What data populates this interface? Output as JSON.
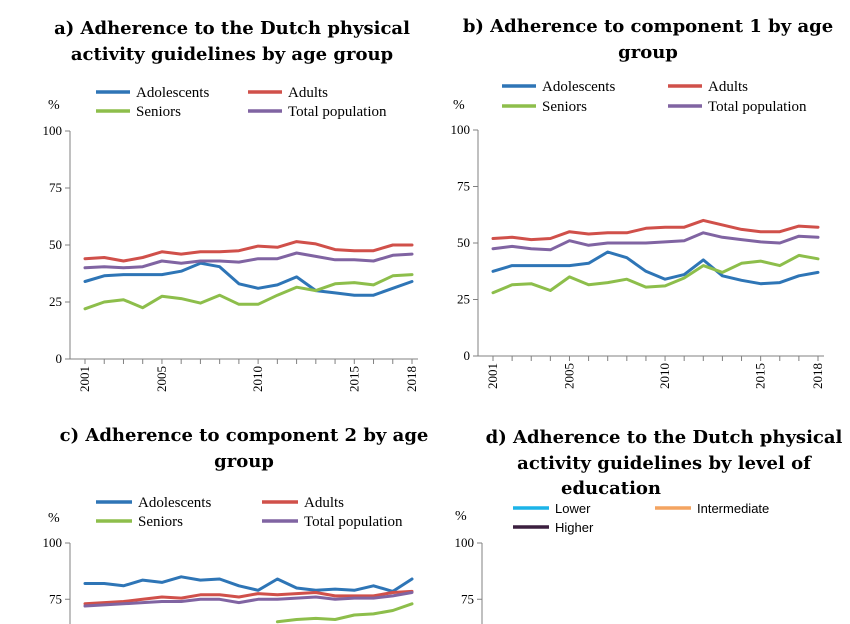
{
  "chart_data": [
    {
      "type": "line",
      "title": "a) Adherence to the Dutch physical activity guidelines by age group",
      "title_lines": [
        "a) Adherence to the Dutch physical",
        "activity guidelines by age group"
      ],
      "ylabel": "%",
      "ylim": [
        0,
        100
      ],
      "yticks": [
        0,
        25,
        50,
        75,
        100
      ],
      "x": [
        2001,
        2002,
        2003,
        2004,
        2005,
        2006,
        2007,
        2008,
        2009,
        2010,
        2011,
        2012,
        2013,
        2014,
        2015,
        2016,
        2017,
        2018
      ],
      "xtick_labels": [
        "2001",
        "2005",
        "2010",
        "2015",
        "2018"
      ],
      "series": [
        {
          "name": "Adolescents",
          "color": "#2E75B6",
          "values": [
            34,
            36.5,
            37,
            37,
            37,
            38.5,
            42,
            40.5,
            33,
            31,
            32.5,
            36,
            30,
            29,
            28,
            28,
            31,
            34
          ]
        },
        {
          "name": "Adults",
          "color": "#D0504A",
          "values": [
            44,
            44.5,
            43,
            44.5,
            47,
            46,
            47,
            47,
            47.5,
            49.5,
            49,
            51.5,
            50.5,
            48,
            47.5,
            47.5,
            50,
            50
          ]
        },
        {
          "name": "Seniors",
          "color": "#8DBE4B",
          "values": [
            22,
            25,
            26,
            22.5,
            27.5,
            26.5,
            24.5,
            28,
            24,
            24,
            28,
            31.5,
            30,
            33,
            33.5,
            32.5,
            36.5,
            37
          ]
        },
        {
          "name": "Total population",
          "color": "#8064A2",
          "values": [
            40,
            40.5,
            40,
            40.5,
            43,
            42,
            43,
            43,
            42.5,
            44,
            44,
            46.5,
            45,
            43.5,
            43.5,
            43,
            45.5,
            46
          ]
        }
      ]
    },
    {
      "type": "line",
      "title": "b) Adherence to component 1 by age group",
      "title_lines": [
        "b) Adherence to component 1 by age",
        "group"
      ],
      "ylabel": "%",
      "ylim": [
        0,
        100
      ],
      "yticks": [
        0,
        25,
        50,
        75,
        100
      ],
      "x": [
        2001,
        2002,
        2003,
        2004,
        2005,
        2006,
        2007,
        2008,
        2009,
        2010,
        2011,
        2012,
        2013,
        2014,
        2015,
        2016,
        2017,
        2018
      ],
      "xtick_labels": [
        "2001",
        "2005",
        "2010",
        "2015",
        "2018"
      ],
      "series": [
        {
          "name": "Adolescents",
          "color": "#2E75B6",
          "values": [
            37.5,
            40,
            40,
            40,
            40,
            41,
            46,
            43.5,
            37.5,
            34,
            36,
            42.5,
            35.5,
            33.5,
            32,
            32.5,
            35.5,
            37
          ]
        },
        {
          "name": "Adults",
          "color": "#D0504A",
          "values": [
            52,
            52.5,
            51.5,
            52,
            55,
            54,
            54.5,
            54.5,
            56.5,
            57,
            57,
            60,
            58,
            56,
            55,
            55,
            57.5,
            57
          ]
        },
        {
          "name": "Seniors",
          "color": "#8DBE4B",
          "values": [
            28,
            31.5,
            32,
            29,
            35,
            31.5,
            32.5,
            34,
            30.5,
            31,
            34.5,
            40,
            37,
            41,
            42,
            40,
            44.5,
            43
          ]
        },
        {
          "name": "Total population",
          "color": "#8064A2",
          "values": [
            47.5,
            48.5,
            47.5,
            47,
            51,
            49,
            50,
            50,
            50,
            50.5,
            51,
            54.5,
            52.5,
            51.5,
            50.5,
            50,
            53,
            52.5
          ]
        }
      ]
    },
    {
      "type": "line",
      "title": "c) Adherence to component 2 by age group",
      "title_lines": [
        "c) Adherence to component 2 by age",
        "group"
      ],
      "ylabel": "%",
      "ylim": [
        0,
        100
      ],
      "yticks": [
        75,
        100
      ],
      "x": [
        2001,
        2002,
        2003,
        2004,
        2005,
        2006,
        2007,
        2008,
        2009,
        2010,
        2011,
        2012,
        2013,
        2014,
        2015,
        2016,
        2017,
        2018
      ],
      "series": [
        {
          "name": "Adolescents",
          "color": "#2E75B6",
          "values": [
            82,
            82,
            81,
            83.5,
            82.5,
            85,
            83.5,
            84,
            81,
            79,
            84,
            80,
            79,
            79.5,
            79,
            81,
            78.5,
            84
          ]
        },
        {
          "name": "Adults",
          "color": "#D0504A",
          "values": [
            73,
            73.5,
            74,
            75,
            76,
            75.5,
            77,
            77,
            76,
            77.5,
            77,
            77.5,
            78,
            76.5,
            76.5,
            76.5,
            78,
            78.5
          ]
        },
        {
          "name": "Seniors",
          "color": "#8DBE4B",
          "values": [
            null,
            null,
            null,
            null,
            null,
            null,
            null,
            null,
            null,
            null,
            65,
            66,
            66.5,
            66,
            68,
            68.5,
            70,
            73
          ]
        },
        {
          "name": "Total population",
          "color": "#8064A2",
          "values": [
            72,
            72.5,
            73,
            73.5,
            74,
            74,
            75,
            75,
            73.5,
            75,
            75,
            75.5,
            76,
            75,
            75.5,
            75.5,
            76.5,
            78
          ]
        }
      ]
    },
    {
      "type": "line",
      "title": "d) Adherence to the Dutch physical activity guidelines by level of education",
      "title_lines": [
        "d) Adherence to the Dutch physical",
        "activity guidelines by level of",
        "education"
      ],
      "ylabel": "%",
      "ylim": [
        0,
        100
      ],
      "yticks": [
        75,
        100
      ],
      "series": [
        {
          "name": "Lower",
          "color": "#1CB4E8",
          "values": []
        },
        {
          "name": "Intermediate",
          "color": "#F4A460",
          "values": []
        },
        {
          "name": "Higher",
          "color": "#3B1F3F",
          "values": []
        }
      ]
    }
  ]
}
